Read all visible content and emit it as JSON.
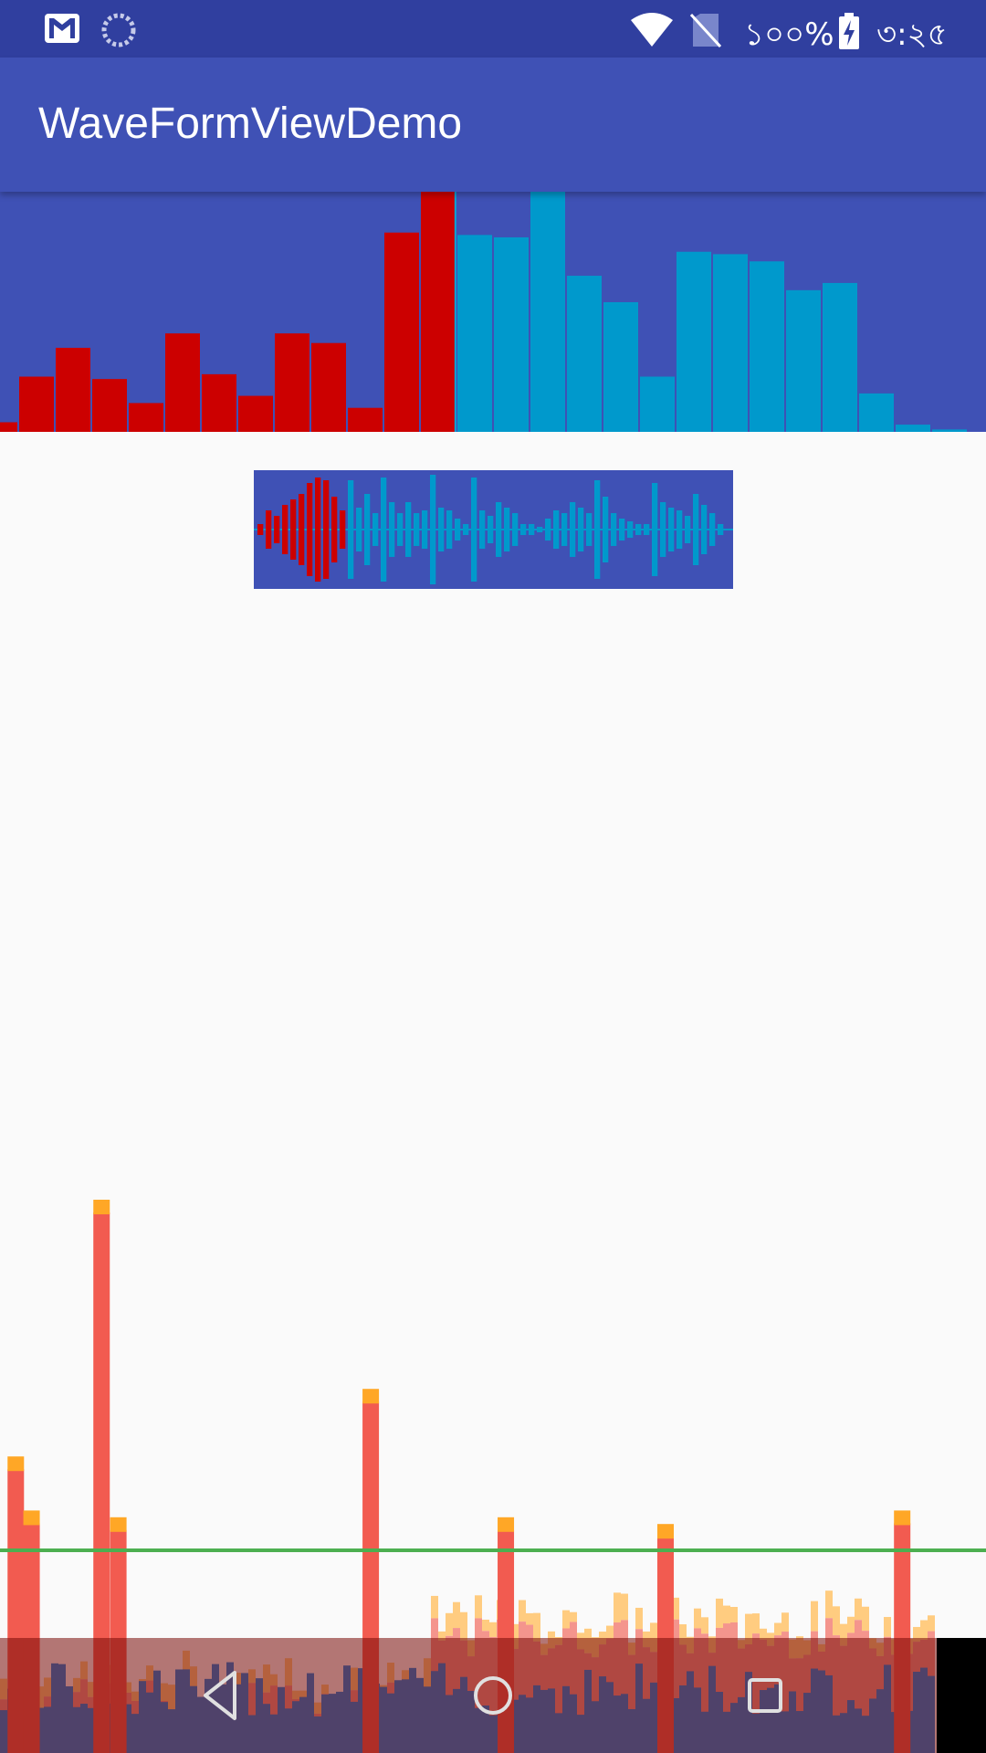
{
  "status_bar": {
    "battery_text": "১০০%",
    "time": "৩:২৫",
    "icons": [
      "gmail-icon",
      "loading-icon",
      "wifi-icon",
      "no-sim-icon",
      "battery-charging-icon"
    ]
  },
  "app_bar": {
    "title": "WaveFormViewDemo"
  },
  "colors": {
    "status_bar": "#303f9f",
    "app_bar": "#3f51b5",
    "played": "#cc0000",
    "unplayed": "#0099cc",
    "threshold_line": "#4caf50"
  },
  "waveform_bars": {
    "played_fraction": 0.46,
    "values": [
      0.04,
      0.23,
      0.35,
      0.22,
      0.12,
      0.41,
      0.24,
      0.15,
      0.41,
      0.37,
      0.1,
      0.83,
      1.0,
      0.82,
      0.81,
      1.0,
      0.65,
      0.54,
      0.23,
      0.75,
      0.74,
      0.71,
      0.59,
      0.62,
      0.16,
      0.03,
      0.01
    ]
  },
  "waveform_mini": {
    "played_fraction": 0.18,
    "values": [
      0.1,
      0.35,
      0.25,
      0.45,
      0.55,
      0.65,
      0.85,
      0.95,
      0.9,
      0.6,
      0.35,
      0.9,
      0.4,
      0.65,
      0.3,
      0.95,
      0.5,
      0.3,
      0.5,
      0.3,
      0.35,
      1.0,
      0.4,
      0.35,
      0.2,
      0.1,
      0.95,
      0.35,
      0.25,
      0.5,
      0.4,
      0.3,
      0.1,
      0.1,
      0.05,
      0.2,
      0.35,
      0.3,
      0.5,
      0.4,
      0.3,
      0.9,
      0.6,
      0.3,
      0.2,
      0.15,
      0.1,
      0.1,
      0.85,
      0.5,
      0.4,
      0.35,
      0.25,
      0.65,
      0.45,
      0.3,
      0.1
    ]
  },
  "visualizer": {
    "threshold_level": 0.3,
    "spikes": [
      {
        "position": 0.016,
        "level": 0.42
      },
      {
        "position": 0.032,
        "level": 0.34
      },
      {
        "position": 0.103,
        "level": 0.8
      },
      {
        "position": 0.12,
        "level": 0.33
      },
      {
        "position": 0.376,
        "level": 0.52
      },
      {
        "position": 0.513,
        "level": 0.33
      },
      {
        "position": 0.675,
        "level": 0.32
      },
      {
        "position": 0.915,
        "level": 0.34
      }
    ]
  },
  "nav_bar": {
    "back_icon": "back-triangle-icon",
    "home_icon": "home-circle-icon",
    "recents_icon": "recents-square-icon"
  }
}
